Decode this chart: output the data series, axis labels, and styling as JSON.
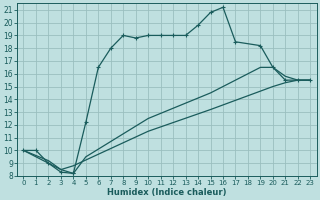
{
  "xlabel": "Humidex (Indice chaleur)",
  "bg_color": "#bfe0e0",
  "grid_color": "#9bbfbf",
  "line_color": "#1a5c5c",
  "xlim": [
    -0.5,
    23.5
  ],
  "ylim": [
    8,
    21.5
  ],
  "xticks": [
    0,
    1,
    2,
    3,
    4,
    5,
    6,
    7,
    8,
    9,
    10,
    11,
    12,
    13,
    14,
    15,
    16,
    17,
    18,
    19,
    20,
    21,
    22,
    23
  ],
  "yticks": [
    8,
    9,
    10,
    11,
    12,
    13,
    14,
    15,
    16,
    17,
    18,
    19,
    20,
    21
  ],
  "series1": {
    "x": [
      0,
      1,
      2,
      3,
      4,
      4,
      5,
      6,
      7,
      8,
      9,
      10,
      11,
      12,
      13,
      14,
      15,
      16,
      17,
      19,
      20,
      21,
      22,
      23
    ],
    "y": [
      10,
      10,
      9,
      8.3,
      8.2,
      8.2,
      12.2,
      16.5,
      18.0,
      19.0,
      18.8,
      19.0,
      19.0,
      19.0,
      19.0,
      19.8,
      20.8,
      21.2,
      18.5,
      18.2,
      16.5,
      15.5,
      15.5,
      15.5
    ],
    "marker": "+"
  },
  "series2": {
    "x": [
      0,
      2,
      3,
      4,
      5,
      10,
      15,
      19,
      20,
      21,
      22,
      23
    ],
    "y": [
      10,
      9.2,
      8.5,
      8.2,
      9.5,
      12.5,
      14.5,
      16.5,
      16.5,
      15.8,
      15.5,
      15.5
    ],
    "marker": null
  },
  "series3": {
    "x": [
      0,
      3,
      4,
      10,
      15,
      20,
      21,
      22,
      23
    ],
    "y": [
      10,
      8.5,
      8.8,
      11.5,
      13.2,
      15.0,
      15.3,
      15.5,
      15.5
    ],
    "marker": null
  }
}
